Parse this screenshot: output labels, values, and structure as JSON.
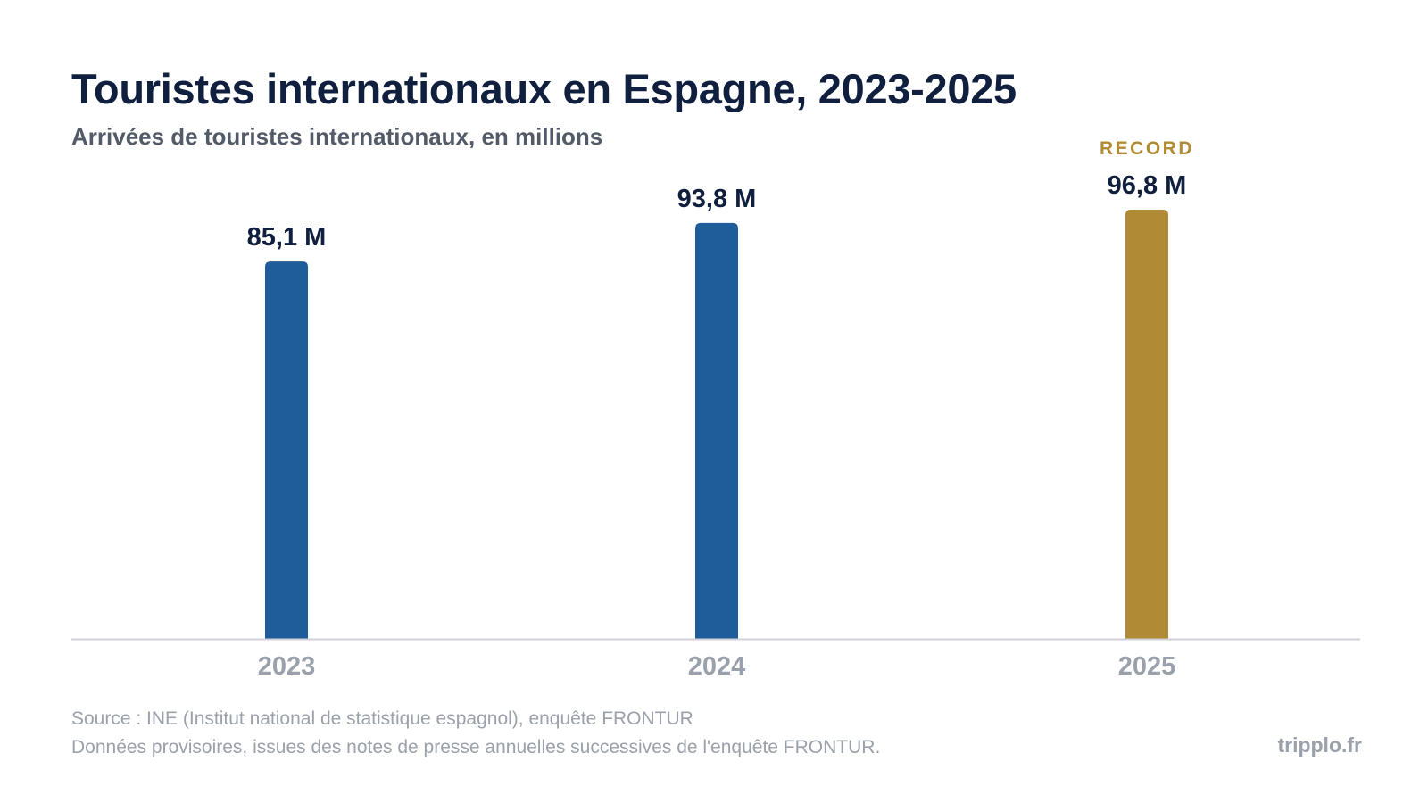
{
  "header": {
    "title": "Touristes internationaux en Espagne, 2023-2025",
    "subtitle": "Arrivées de touristes internationaux, en millions"
  },
  "chart_data": {
    "type": "bar",
    "title": "Touristes internationaux en Espagne, 2023-2025",
    "subtitle": "Arrivées de touristes internationaux, en millions",
    "xlabel": "",
    "ylabel": "",
    "categories": [
      "2023",
      "2024",
      "2025"
    ],
    "values": [
      85.1,
      93.8,
      96.8
    ],
    "value_labels": [
      "85,1 M",
      "93,8 M",
      "96,8 M"
    ],
    "annotations": [
      {
        "category": "2025",
        "text": "RECORD"
      }
    ],
    "ylim": [
      0,
      96.8
    ],
    "grid": false,
    "colors": {
      "default_bar": "#1f5c9a",
      "highlight_bar": "#b08a34",
      "highlight_category": "2025",
      "baseline": "#cfd2d7",
      "value_label": "#0f1f3d",
      "tick_label": "#9ba1ab",
      "annotation": "#b08a34"
    }
  },
  "footer": {
    "source_line1": "Source : INE (Institut national de statistique espagnol), enquête FRONTUR",
    "source_line2": "Données provisoires, issues des notes de presse annuelles successives de l'enquête FRONTUR.",
    "brand": "tripplo.fr"
  }
}
